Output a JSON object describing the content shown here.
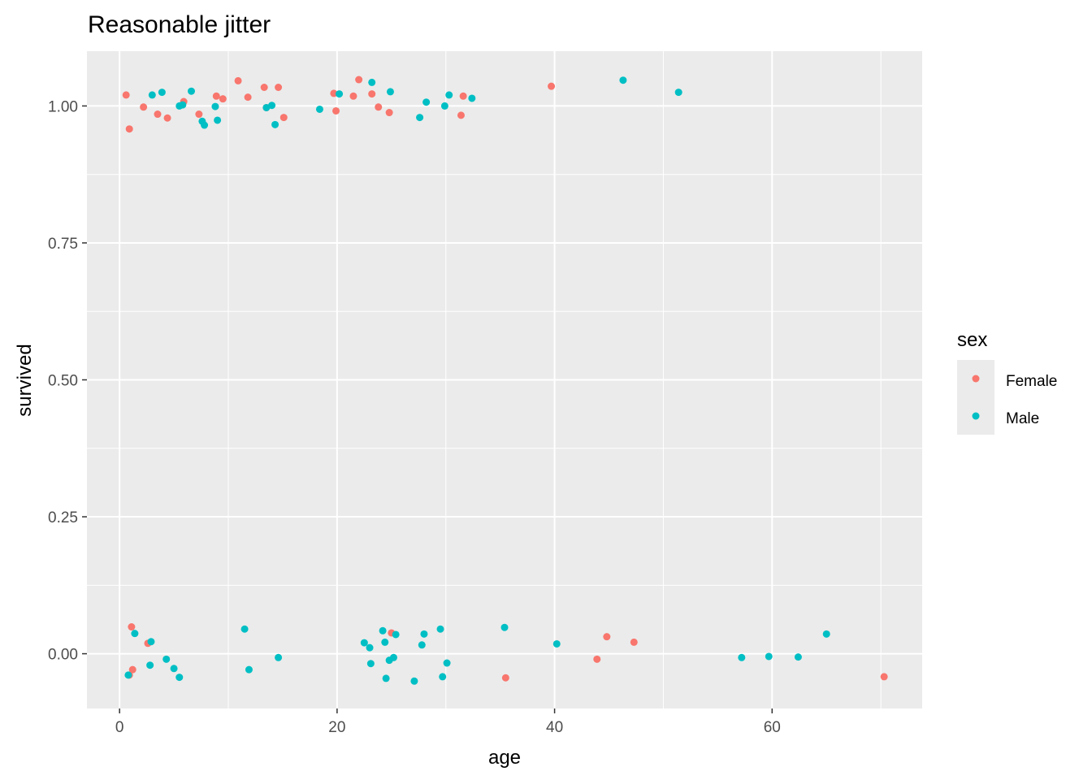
{
  "chart_data": {
    "type": "scatter",
    "title": "Reasonable jitter",
    "xlabel": "age",
    "ylabel": "survived",
    "xlim": [
      -3,
      73.8
    ],
    "ylim": [
      -0.1,
      1.1
    ],
    "x_ticks": [
      0,
      20,
      40,
      60
    ],
    "x_tick_labels": [
      "0",
      "20",
      "40",
      "60"
    ],
    "y_ticks": [
      0,
      0.25,
      0.5,
      0.75,
      1
    ],
    "y_tick_labels": [
      "0.00",
      "0.25",
      "0.50",
      "0.75",
      "1.00"
    ],
    "grid": true,
    "legend": {
      "title": "sex",
      "position": "right",
      "entries": [
        {
          "label": "Female",
          "color": "#f8766d"
        },
        {
          "label": "Male",
          "color": "#00bfc4"
        }
      ]
    },
    "series": [
      {
        "name": "Female",
        "color": "#f8766d",
        "points": [
          [
            0.6,
            1.02
          ],
          [
            0.9,
            0.958
          ],
          [
            2.2,
            0.998
          ],
          [
            3.5,
            0.985
          ],
          [
            4.4,
            0.978
          ],
          [
            5.9,
            1.008
          ],
          [
            7.3,
            0.985
          ],
          [
            8.9,
            1.018
          ],
          [
            9.5,
            1.013
          ],
          [
            10.9,
            1.046
          ],
          [
            11.8,
            1.016
          ],
          [
            13.3,
            1.034
          ],
          [
            13.5,
            0.997
          ],
          [
            14.6,
            1.034
          ],
          [
            15.1,
            0.979
          ],
          [
            19.7,
            1.023
          ],
          [
            19.9,
            0.991
          ],
          [
            21.5,
            1.018
          ],
          [
            22.0,
            1.048
          ],
          [
            23.2,
            1.022
          ],
          [
            23.8,
            0.998
          ],
          [
            24.8,
            0.988
          ],
          [
            31.4,
            0.983
          ],
          [
            31.6,
            1.018
          ],
          [
            39.7,
            1.036
          ],
          [
            1.1,
            0.049
          ],
          [
            1.2,
            -0.029
          ],
          [
            0.9,
            -0.039
          ],
          [
            2.6,
            0.019
          ],
          [
            25.0,
            0.038
          ],
          [
            35.5,
            -0.044
          ],
          [
            43.9,
            -0.01
          ],
          [
            44.8,
            0.031
          ],
          [
            47.3,
            0.021
          ],
          [
            70.3,
            -0.042
          ]
        ]
      },
      {
        "name": "Male",
        "color": "#00bfc4",
        "points": [
          [
            3.0,
            1.02
          ],
          [
            3.9,
            1.025
          ],
          [
            5.5,
            1.0
          ],
          [
            5.8,
            1.002
          ],
          [
            6.6,
            1.027
          ],
          [
            7.6,
            0.972
          ],
          [
            7.8,
            0.965
          ],
          [
            8.8,
            0.999
          ],
          [
            9.0,
            0.974
          ],
          [
            13.5,
            0.997
          ],
          [
            14.0,
            1.001
          ],
          [
            14.3,
            0.966
          ],
          [
            18.4,
            0.994
          ],
          [
            20.2,
            1.022
          ],
          [
            23.2,
            1.043
          ],
          [
            24.9,
            1.026
          ],
          [
            27.6,
            0.979
          ],
          [
            28.2,
            1.007
          ],
          [
            29.9,
            1.0
          ],
          [
            30.3,
            1.02
          ],
          [
            32.4,
            1.014
          ],
          [
            46.3,
            1.047
          ],
          [
            51.4,
            1.025
          ],
          [
            0.8,
            -0.039
          ],
          [
            1.4,
            0.037
          ],
          [
            2.9,
            0.022
          ],
          [
            2.8,
            -0.021
          ],
          [
            4.3,
            -0.01
          ],
          [
            5.0,
            -0.027
          ],
          [
            5.5,
            -0.043
          ],
          [
            11.5,
            0.045
          ],
          [
            11.9,
            -0.029
          ],
          [
            14.6,
            -0.007
          ],
          [
            22.5,
            0.02
          ],
          [
            23.0,
            0.011
          ],
          [
            23.1,
            -0.018
          ],
          [
            24.2,
            0.042
          ],
          [
            24.4,
            0.021
          ],
          [
            24.5,
            -0.045
          ],
          [
            24.8,
            -0.012
          ],
          [
            25.2,
            -0.007
          ],
          [
            25.4,
            0.035
          ],
          [
            27.1,
            -0.05
          ],
          [
            27.8,
            0.016
          ],
          [
            28.0,
            0.036
          ],
          [
            29.5,
            0.045
          ],
          [
            29.7,
            -0.042
          ],
          [
            30.1,
            -0.017
          ],
          [
            35.4,
            0.048
          ],
          [
            40.2,
            0.018
          ],
          [
            57.2,
            -0.007
          ],
          [
            59.7,
            -0.005
          ],
          [
            62.4,
            -0.006
          ],
          [
            65.0,
            0.036
          ]
        ]
      }
    ]
  }
}
